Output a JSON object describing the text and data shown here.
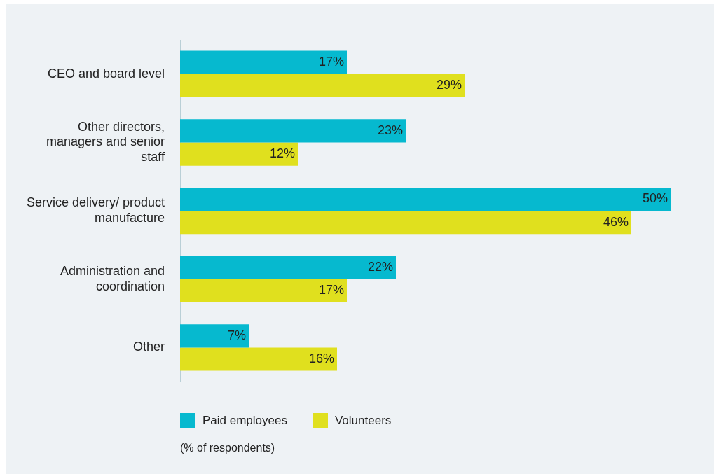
{
  "chart_data": {
    "type": "bar",
    "orientation": "horizontal",
    "categories": [
      "CEO and board level",
      "Other directors, managers and senior staff",
      "Service delivery/ product manufacture",
      "Administration and coordination",
      "Other"
    ],
    "series": [
      {
        "name": "Paid employees",
        "color": "#06b9cf",
        "values": [
          17,
          23,
          50,
          22,
          7
        ],
        "value_labels": [
          "17%",
          "23%",
          "50%",
          "22%",
          "7%"
        ]
      },
      {
        "name": "Volunteers",
        "color": "#e0e01e",
        "values": [
          29,
          12,
          46,
          17,
          16
        ],
        "value_labels": [
          "29%",
          "12%",
          "46%",
          "17%",
          "16%"
        ]
      }
    ],
    "xlim": [
      0,
      50
    ],
    "tick_labels": "y",
    "legend": "bottom left",
    "annotations": [
      "(% of respondents)"
    ]
  }
}
